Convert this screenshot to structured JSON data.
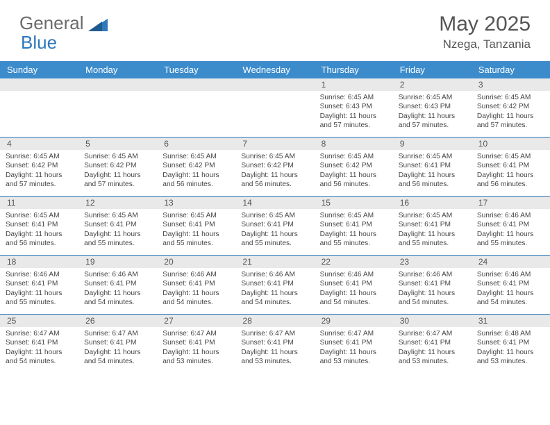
{
  "logo": {
    "word1": "General",
    "word2": "Blue"
  },
  "title": "May 2025",
  "location": "Nzega, Tanzania",
  "weekdays": [
    "Sunday",
    "Monday",
    "Tuesday",
    "Wednesday",
    "Thursday",
    "Friday",
    "Saturday"
  ],
  "colors": {
    "header_bg": "#3c8ccc",
    "daynum_bg": "#e9e9e9",
    "rule": "#2f78bd",
    "text": "#444444",
    "logo_blue": "#2f78bd",
    "logo_gray": "#6b6b6b"
  },
  "weeks": [
    {
      "nums": [
        "",
        "",
        "",
        "",
        "1",
        "2",
        "3"
      ],
      "cells": [
        {
          "sunrise": "",
          "sunset": "",
          "daylight": ""
        },
        {
          "sunrise": "",
          "sunset": "",
          "daylight": ""
        },
        {
          "sunrise": "",
          "sunset": "",
          "daylight": ""
        },
        {
          "sunrise": "",
          "sunset": "",
          "daylight": ""
        },
        {
          "sunrise": "Sunrise: 6:45 AM",
          "sunset": "Sunset: 6:43 PM",
          "daylight": "Daylight: 11 hours and 57 minutes."
        },
        {
          "sunrise": "Sunrise: 6:45 AM",
          "sunset": "Sunset: 6:43 PM",
          "daylight": "Daylight: 11 hours and 57 minutes."
        },
        {
          "sunrise": "Sunrise: 6:45 AM",
          "sunset": "Sunset: 6:42 PM",
          "daylight": "Daylight: 11 hours and 57 minutes."
        }
      ]
    },
    {
      "nums": [
        "4",
        "5",
        "6",
        "7",
        "8",
        "9",
        "10"
      ],
      "cells": [
        {
          "sunrise": "Sunrise: 6:45 AM",
          "sunset": "Sunset: 6:42 PM",
          "daylight": "Daylight: 11 hours and 57 minutes."
        },
        {
          "sunrise": "Sunrise: 6:45 AM",
          "sunset": "Sunset: 6:42 PM",
          "daylight": "Daylight: 11 hours and 57 minutes."
        },
        {
          "sunrise": "Sunrise: 6:45 AM",
          "sunset": "Sunset: 6:42 PM",
          "daylight": "Daylight: 11 hours and 56 minutes."
        },
        {
          "sunrise": "Sunrise: 6:45 AM",
          "sunset": "Sunset: 6:42 PM",
          "daylight": "Daylight: 11 hours and 56 minutes."
        },
        {
          "sunrise": "Sunrise: 6:45 AM",
          "sunset": "Sunset: 6:42 PM",
          "daylight": "Daylight: 11 hours and 56 minutes."
        },
        {
          "sunrise": "Sunrise: 6:45 AM",
          "sunset": "Sunset: 6:41 PM",
          "daylight": "Daylight: 11 hours and 56 minutes."
        },
        {
          "sunrise": "Sunrise: 6:45 AM",
          "sunset": "Sunset: 6:41 PM",
          "daylight": "Daylight: 11 hours and 56 minutes."
        }
      ]
    },
    {
      "nums": [
        "11",
        "12",
        "13",
        "14",
        "15",
        "16",
        "17"
      ],
      "cells": [
        {
          "sunrise": "Sunrise: 6:45 AM",
          "sunset": "Sunset: 6:41 PM",
          "daylight": "Daylight: 11 hours and 56 minutes."
        },
        {
          "sunrise": "Sunrise: 6:45 AM",
          "sunset": "Sunset: 6:41 PM",
          "daylight": "Daylight: 11 hours and 55 minutes."
        },
        {
          "sunrise": "Sunrise: 6:45 AM",
          "sunset": "Sunset: 6:41 PM",
          "daylight": "Daylight: 11 hours and 55 minutes."
        },
        {
          "sunrise": "Sunrise: 6:45 AM",
          "sunset": "Sunset: 6:41 PM",
          "daylight": "Daylight: 11 hours and 55 minutes."
        },
        {
          "sunrise": "Sunrise: 6:45 AM",
          "sunset": "Sunset: 6:41 PM",
          "daylight": "Daylight: 11 hours and 55 minutes."
        },
        {
          "sunrise": "Sunrise: 6:45 AM",
          "sunset": "Sunset: 6:41 PM",
          "daylight": "Daylight: 11 hours and 55 minutes."
        },
        {
          "sunrise": "Sunrise: 6:46 AM",
          "sunset": "Sunset: 6:41 PM",
          "daylight": "Daylight: 11 hours and 55 minutes."
        }
      ]
    },
    {
      "nums": [
        "18",
        "19",
        "20",
        "21",
        "22",
        "23",
        "24"
      ],
      "cells": [
        {
          "sunrise": "Sunrise: 6:46 AM",
          "sunset": "Sunset: 6:41 PM",
          "daylight": "Daylight: 11 hours and 55 minutes."
        },
        {
          "sunrise": "Sunrise: 6:46 AM",
          "sunset": "Sunset: 6:41 PM",
          "daylight": "Daylight: 11 hours and 54 minutes."
        },
        {
          "sunrise": "Sunrise: 6:46 AM",
          "sunset": "Sunset: 6:41 PM",
          "daylight": "Daylight: 11 hours and 54 minutes."
        },
        {
          "sunrise": "Sunrise: 6:46 AM",
          "sunset": "Sunset: 6:41 PM",
          "daylight": "Daylight: 11 hours and 54 minutes."
        },
        {
          "sunrise": "Sunrise: 6:46 AM",
          "sunset": "Sunset: 6:41 PM",
          "daylight": "Daylight: 11 hours and 54 minutes."
        },
        {
          "sunrise": "Sunrise: 6:46 AM",
          "sunset": "Sunset: 6:41 PM",
          "daylight": "Daylight: 11 hours and 54 minutes."
        },
        {
          "sunrise": "Sunrise: 6:46 AM",
          "sunset": "Sunset: 6:41 PM",
          "daylight": "Daylight: 11 hours and 54 minutes."
        }
      ]
    },
    {
      "nums": [
        "25",
        "26",
        "27",
        "28",
        "29",
        "30",
        "31"
      ],
      "cells": [
        {
          "sunrise": "Sunrise: 6:47 AM",
          "sunset": "Sunset: 6:41 PM",
          "daylight": "Daylight: 11 hours and 54 minutes."
        },
        {
          "sunrise": "Sunrise: 6:47 AM",
          "sunset": "Sunset: 6:41 PM",
          "daylight": "Daylight: 11 hours and 54 minutes."
        },
        {
          "sunrise": "Sunrise: 6:47 AM",
          "sunset": "Sunset: 6:41 PM",
          "daylight": "Daylight: 11 hours and 53 minutes."
        },
        {
          "sunrise": "Sunrise: 6:47 AM",
          "sunset": "Sunset: 6:41 PM",
          "daylight": "Daylight: 11 hours and 53 minutes."
        },
        {
          "sunrise": "Sunrise: 6:47 AM",
          "sunset": "Sunset: 6:41 PM",
          "daylight": "Daylight: 11 hours and 53 minutes."
        },
        {
          "sunrise": "Sunrise: 6:47 AM",
          "sunset": "Sunset: 6:41 PM",
          "daylight": "Daylight: 11 hours and 53 minutes."
        },
        {
          "sunrise": "Sunrise: 6:48 AM",
          "sunset": "Sunset: 6:41 PM",
          "daylight": "Daylight: 11 hours and 53 minutes."
        }
      ]
    }
  ]
}
